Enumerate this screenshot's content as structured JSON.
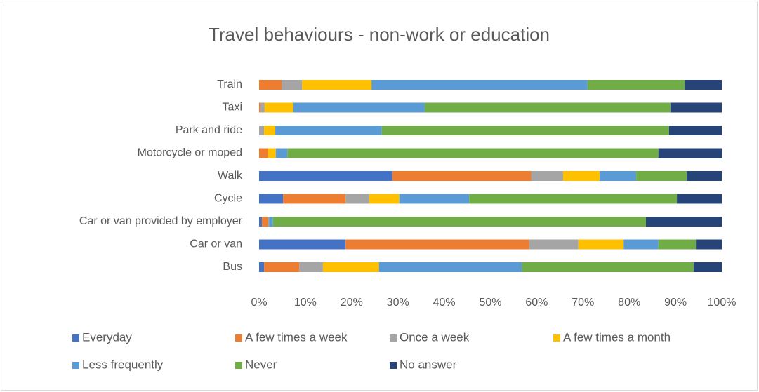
{
  "chart_data": {
    "type": "stacked_barh",
    "title": "Travel behaviours - non-work or education",
    "categories": [
      "Bus",
      "Car or van",
      "Car or van provided by employer",
      "Cycle",
      "Walk",
      "Motorcycle or moped",
      "Park and ride",
      "Taxi",
      "Train"
    ],
    "series": [
      {
        "name": "Everyday",
        "color": "#4472c4",
        "values": [
          1.1,
          18.7,
          0.6,
          5.2,
          28.8,
          0,
          0,
          0,
          0
        ]
      },
      {
        "name": "A few times a week",
        "color": "#ed7d31",
        "values": [
          7.6,
          39.7,
          1.3,
          13.5,
          30,
          1.9,
          0,
          0.3,
          4.9
        ]
      },
      {
        "name": "Once a week",
        "color": "#a5a5a5",
        "values": [
          5.1,
          10.6,
          0.3,
          5.1,
          6.9,
          0,
          1.1,
          0.9,
          4.4
        ]
      },
      {
        "name": "A few times a month",
        "color": "#ffc000",
        "values": [
          12.1,
          9.8,
          0,
          6.5,
          7.9,
          1.7,
          2.4,
          6.2,
          15
        ]
      },
      {
        "name": "Less frequently",
        "color": "#5b9bd5",
        "values": [
          30.9,
          7.5,
          0.8,
          15.1,
          7.9,
          2.5,
          23,
          28.4,
          46.7
        ]
      },
      {
        "name": "Never",
        "color": "#70ad47",
        "values": [
          37.1,
          8.1,
          80.6,
          44.9,
          10.9,
          80.2,
          62.1,
          53.1,
          21
        ]
      },
      {
        "name": "No answer",
        "color": "#264478",
        "values": [
          6.1,
          5.6,
          16.4,
          9.7,
          7.6,
          13.7,
          11.4,
          11.1,
          8
        ]
      }
    ],
    "xlim": [
      0,
      100
    ],
    "xticks": [
      {
        "value": 0,
        "label": "0%"
      },
      {
        "value": 10,
        "label": "10%"
      },
      {
        "value": 20,
        "label": "20%"
      },
      {
        "value": 30,
        "label": "30%"
      },
      {
        "value": 40,
        "label": "40%"
      },
      {
        "value": 50,
        "label": "50%"
      },
      {
        "value": 60,
        "label": "60%"
      },
      {
        "value": 70,
        "label": "70%"
      },
      {
        "value": 80,
        "label": "80%"
      },
      {
        "value": 90,
        "label": "90%"
      },
      {
        "value": 100,
        "label": "100%"
      }
    ],
    "legend": "bottom"
  }
}
